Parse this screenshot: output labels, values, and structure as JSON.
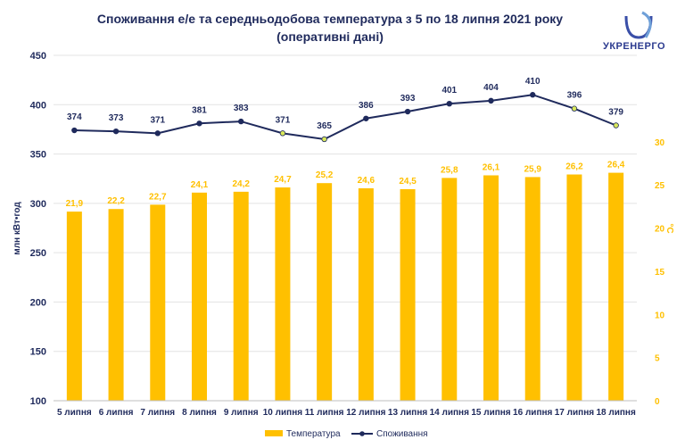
{
  "title_line1": "Споживання е/е та середньодобова температура з 5 по 18 липня 2021 року",
  "title_line2": "(оперативні дані)",
  "logo": {
    "name": "УКРЕНЕРГО",
    "icon": "ukrenergo-logo-icon"
  },
  "colors": {
    "bar": "#ffc000",
    "line": "#1f2a5c",
    "marker_highlight": "#d9e85a",
    "temp_label": "#ffc000",
    "cons_label": "#1f2a5c"
  },
  "chart_data": {
    "type": "bar+line",
    "categories": [
      "5 липня",
      "6 липня",
      "7 липня",
      "8 липня",
      "9 липня",
      "10 липня",
      "11 липня",
      "12 липня",
      "13 липня",
      "14 липня",
      "15 липня",
      "16 липня",
      "17 липня",
      "18 липня"
    ],
    "series": [
      {
        "name": "Температура",
        "type": "bar",
        "axis": "right",
        "values": [
          21.9,
          22.2,
          22.7,
          24.1,
          24.2,
          24.7,
          25.2,
          24.6,
          24.5,
          25.8,
          26.1,
          25.9,
          26.2,
          26.4
        ],
        "labels": [
          "21,9",
          "22,2",
          "22,7",
          "24,1",
          "24,2",
          "24,7",
          "25,2",
          "24,6",
          "24,5",
          "25,8",
          "26,1",
          "25,9",
          "26,2",
          "26,4"
        ]
      },
      {
        "name": "Споживання",
        "type": "line",
        "axis": "left",
        "values": [
          374,
          373,
          371,
          381,
          383,
          371,
          365,
          386,
          393,
          401,
          404,
          410,
          396,
          379
        ],
        "labels": [
          "374",
          "373",
          "371",
          "381",
          "383",
          "371",
          "365",
          "386",
          "393",
          "401",
          "404",
          "410",
          "396",
          "379"
        ],
        "highlighted_markers": [
          5,
          6,
          12,
          13
        ]
      }
    ],
    "ylabel_left": "млн кВт•год",
    "ylim_left": [
      100,
      450
    ],
    "yticks_left": [
      "100",
      "150",
      "200",
      "250",
      "300",
      "350",
      "400",
      "450"
    ],
    "ylabel_right": "°C",
    "ylim_right": [
      0,
      40
    ],
    "yticks_right": [
      "0",
      "5",
      "10",
      "15",
      "20",
      "25",
      "30"
    ],
    "grid": true,
    "legend_position": "bottom"
  }
}
